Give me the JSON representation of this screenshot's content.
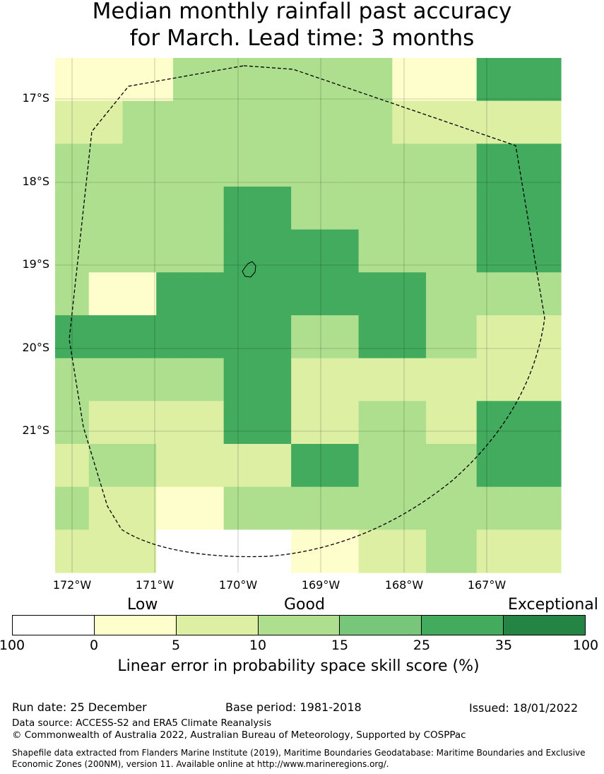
{
  "title": {
    "line1": "Median monthly rainfall past accuracy",
    "line2": "for March. Lead time: 3 months"
  },
  "map": {
    "lat_labels": [
      "17°S",
      "18°S",
      "19°S",
      "20°S",
      "21°S"
    ],
    "lon_labels": [
      "172°W",
      "171°W",
      "170°W",
      "169°W",
      "168°W",
      "167°W"
    ],
    "grid": [
      [
        1,
        1,
        1,
        1,
        1,
        1,
        1,
        3,
        3,
        3,
        3,
        3,
        3,
        3,
        3,
        3,
        3,
        3,
        3,
        3,
        1,
        1,
        1,
        1,
        1,
        5,
        5,
        5,
        5,
        5
      ],
      [
        2,
        2,
        2,
        2,
        3,
        3,
        3,
        3,
        3,
        3,
        3,
        3,
        3,
        3,
        3,
        3,
        3,
        3,
        3,
        3,
        2,
        2,
        2,
        2,
        2,
        2,
        2,
        2,
        2,
        2
      ],
      [
        3,
        3,
        3,
        3,
        3,
        3,
        3,
        3,
        3,
        3,
        3,
        3,
        3,
        3,
        3,
        3,
        3,
        3,
        3,
        3,
        3,
        3,
        3,
        3,
        3,
        5,
        5,
        5,
        5,
        5
      ],
      [
        3,
        3,
        3,
        3,
        3,
        3,
        3,
        3,
        3,
        3,
        5,
        5,
        5,
        5,
        3,
        3,
        3,
        3,
        3,
        3,
        3,
        3,
        3,
        3,
        3,
        5,
        5,
        5,
        5,
        5
      ],
      [
        3,
        3,
        3,
        3,
        3,
        3,
        3,
        3,
        3,
        3,
        5,
        5,
        5,
        5,
        5,
        5,
        5,
        5,
        3,
        3,
        3,
        3,
        3,
        3,
        3,
        5,
        5,
        5,
        5,
        5
      ],
      [
        3,
        3,
        1,
        1,
        1,
        1,
        5,
        5,
        5,
        5,
        5,
        5,
        5,
        5,
        5,
        5,
        5,
        5,
        5,
        5,
        5,
        5,
        3,
        3,
        3,
        3,
        3,
        3,
        3,
        3
      ],
      [
        5,
        5,
        5,
        5,
        5,
        5,
        5,
        5,
        5,
        5,
        5,
        5,
        5,
        5,
        3,
        3,
        3,
        3,
        5,
        5,
        5,
        5,
        3,
        3,
        3,
        2,
        2,
        2,
        2,
        2
      ],
      [
        3,
        3,
        3,
        3,
        3,
        3,
        3,
        3,
        3,
        3,
        5,
        5,
        5,
        5,
        2,
        2,
        2,
        2,
        2,
        2,
        2,
        2,
        2,
        2,
        2,
        2,
        2,
        2,
        2,
        2
      ],
      [
        3,
        3,
        2,
        2,
        2,
        2,
        2,
        2,
        2,
        2,
        5,
        5,
        5,
        5,
        2,
        2,
        2,
        2,
        3,
        3,
        3,
        3,
        2,
        2,
        2,
        5,
        5,
        5,
        5,
        5
      ],
      [
        2,
        2,
        3,
        3,
        3,
        3,
        2,
        2,
        2,
        2,
        2,
        2,
        2,
        2,
        5,
        5,
        5,
        5,
        3,
        3,
        3,
        3,
        3,
        3,
        3,
        5,
        5,
        5,
        5,
        5
      ],
      [
        3,
        3,
        2,
        2,
        2,
        2,
        1,
        1,
        1,
        1,
        3,
        3,
        3,
        3,
        3,
        3,
        3,
        3,
        3,
        3,
        3,
        3,
        3,
        3,
        3,
        3,
        3,
        3,
        3,
        3
      ],
      [
        2,
        2,
        2,
        2,
        2,
        2,
        0,
        0,
        0,
        0,
        0,
        0,
        0,
        0,
        1,
        1,
        1,
        1,
        2,
        2,
        2,
        2,
        3,
        3,
        3,
        2,
        2,
        2,
        2,
        2
      ]
    ],
    "lon_range": [
      -172.2,
      -166.2
    ],
    "lat_range": [
      -16.5,
      -22.7
    ]
  },
  "legend": {
    "categories": [
      "Low",
      "Good",
      "Exceptional"
    ],
    "colors": [
      "#ffffff",
      "#fefecc",
      "#dcefa3",
      "#addf8e",
      "#78c679",
      "#42ab5d",
      "#238443"
    ],
    "ticks": [
      "100",
      "0",
      "5",
      "10",
      "15",
      "25",
      "35",
      "100"
    ],
    "label": "Linear error in probability space skill score (%)"
  },
  "info": {
    "run_date": "Run date: 25 December",
    "base_period": "Base period: 1981-2018",
    "issued": "Issued: 18/01/2022",
    "data_source": "Data source: ACCESS-S2 and ERA5 Climate Reanalysis",
    "copyright": "© Commonwealth of Australia 2022, Australian Bureau of Meteorology, Supported by COSPPac",
    "shapefile_line1": "Shapefile data extracted from Flanders Marine Institute (2019), Maritime Boundaries Geodatabase: Maritime Boundaries and Exclusive",
    "shapefile_line2": "Economic Zones (200NM), version 11. Available online at http://www.marineregions.org/."
  }
}
